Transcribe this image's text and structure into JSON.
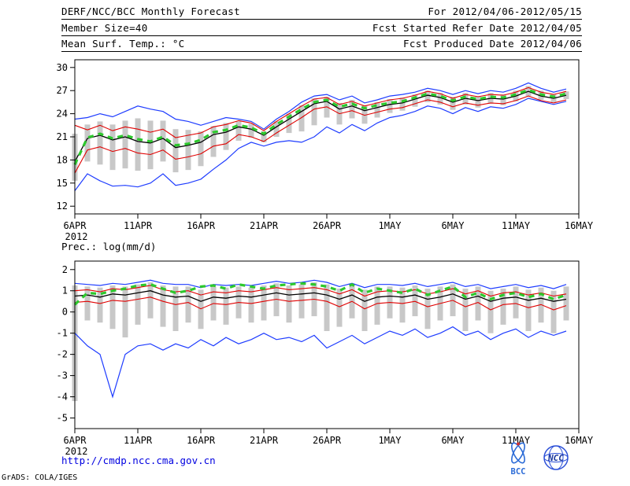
{
  "header": {
    "line1_left": "DERF/NCC/BCC Monthly Forecast",
    "line1_right": "For 2012/04/06-2012/05/15",
    "line2_left": "Member Size=40",
    "line2_right": "Fcst Started Refer Date 2012/04/05",
    "line3_right": "Fcst Produced Date 2012/04/06"
  },
  "footer": {
    "url": "http://cmdp.ncc.cma.gov.cn",
    "credit": "GrADS: COLA/IGES",
    "logo_bcc": "BCC",
    "logo_ncc": "NCC"
  },
  "colors": {
    "max_min_line": "#1e3cff",
    "quartile_line": "#e00000",
    "mean_line": "#000000",
    "analysis_line": "#2dc82d",
    "spread_bar": "#c8c8c8",
    "url_blue": "#0000e0",
    "logo_blue": "#2b6bd7"
  },
  "chart_data": [
    {
      "type": "line",
      "title": "Mean Surf. Temp.: °C",
      "x_year": "2012",
      "x_ticks": [
        "6APR",
        "11APR",
        "16APR",
        "21APR",
        "26APR",
        "1MAY",
        "6MAY",
        "11MAY",
        "16MAY"
      ],
      "x_tick_days": [
        0,
        5,
        10,
        15,
        20,
        25,
        30,
        35,
        40
      ],
      "x_days": 40,
      "ylim": [
        11,
        31
      ],
      "yticks": [
        12,
        15,
        18,
        21,
        24,
        27,
        30
      ],
      "legend_position": "none",
      "grid": false,
      "series": [
        {
          "name": "ensemble-max",
          "color": "#1e3cff",
          "width": 1.2,
          "dash": "",
          "values": [
            23.3,
            23.5,
            24.0,
            23.6,
            24.3,
            25.0,
            24.6,
            24.3,
            23.3,
            23.0,
            22.5,
            23.0,
            23.5,
            23.3,
            23.0,
            22.0,
            23.3,
            24.3,
            25.5,
            26.3,
            26.5,
            25.8,
            26.3,
            25.4,
            25.8,
            26.3,
            26.5,
            26.8,
            27.3,
            27.0,
            26.5,
            27.0,
            26.6,
            27.0,
            26.8,
            27.3,
            28.0,
            27.3,
            26.8,
            27.2
          ]
        },
        {
          "name": "ensemble-min",
          "color": "#1e3cff",
          "width": 1.2,
          "dash": "",
          "values": [
            14.0,
            16.2,
            15.3,
            14.6,
            14.7,
            14.5,
            15.0,
            16.2,
            14.7,
            15.0,
            15.5,
            16.8,
            18.0,
            19.5,
            20.3,
            19.8,
            20.3,
            20.5,
            20.3,
            21.0,
            22.3,
            21.5,
            22.6,
            21.8,
            22.8,
            23.5,
            23.8,
            24.3,
            25.0,
            24.7,
            24.0,
            24.8,
            24.3,
            24.9,
            24.7,
            25.2,
            26.0,
            25.6,
            25.2,
            25.6
          ]
        },
        {
          "name": "upper-quartile",
          "color": "#e00000",
          "width": 1.1,
          "dash": "",
          "values": [
            22.5,
            21.9,
            22.5,
            21.8,
            22.3,
            22.0,
            21.6,
            22.0,
            20.9,
            21.2,
            21.5,
            22.3,
            22.6,
            23.1,
            22.8,
            21.8,
            23.0,
            24.0,
            25.0,
            25.9,
            26.1,
            25.2,
            25.6,
            25.0,
            25.4,
            25.8,
            26.0,
            26.4,
            26.9,
            26.6,
            26.0,
            26.5,
            26.2,
            26.5,
            26.4,
            26.8,
            27.4,
            26.8,
            26.5,
            26.9
          ]
        },
        {
          "name": "lower-quartile",
          "color": "#e00000",
          "width": 1.1,
          "dash": "",
          "values": [
            16.3,
            19.3,
            19.7,
            19.1,
            19.5,
            18.9,
            18.7,
            19.3,
            18.1,
            18.4,
            18.8,
            19.8,
            20.1,
            21.3,
            21.0,
            20.4,
            21.5,
            22.5,
            23.5,
            24.6,
            24.9,
            24.0,
            24.4,
            23.8,
            24.2,
            24.6,
            24.8,
            25.3,
            25.8,
            25.5,
            24.9,
            25.4,
            25.1,
            25.4,
            25.3,
            25.7,
            26.3,
            25.7,
            25.4,
            25.8
          ]
        },
        {
          "name": "ensemble-mean",
          "color": "#000000",
          "width": 1.3,
          "dash": "",
          "values": [
            17.8,
            20.8,
            21.2,
            20.6,
            21.0,
            20.4,
            20.2,
            20.8,
            19.6,
            19.9,
            20.3,
            21.3,
            21.6,
            22.3,
            22.0,
            21.2,
            22.3,
            23.3,
            24.3,
            25.3,
            25.6,
            24.6,
            25.0,
            24.4,
            24.8,
            25.2,
            25.4,
            25.9,
            26.4,
            26.1,
            25.5,
            26.0,
            25.7,
            26.0,
            25.9,
            26.3,
            26.9,
            26.3,
            26.0,
            26.4
          ]
        },
        {
          "name": "analysis",
          "color": "#2dc82d",
          "width": 3.2,
          "dash": "7 6",
          "values": [
            17.4,
            20.9,
            21.4,
            20.8,
            21.2,
            20.7,
            20.4,
            21.0,
            19.9,
            20.1,
            20.6,
            21.6,
            21.9,
            22.5,
            22.2,
            21.4,
            22.6,
            23.6,
            24.6,
            25.5,
            25.8,
            24.9,
            25.3,
            24.7,
            25.1,
            25.4,
            25.6,
            26.1,
            26.6,
            26.3,
            25.7,
            26.2,
            25.9,
            26.2,
            26.1,
            26.5,
            27.1,
            26.5,
            26.2,
            26.6
          ]
        }
      ],
      "bars": {
        "color": "#c8c8c8",
        "low": [
          15.3,
          17.8,
          17.4,
          16.7,
          16.9,
          16.6,
          16.8,
          17.8,
          16.4,
          16.7,
          17.2,
          18.4,
          19.3,
          20.5,
          20.9,
          20.3,
          21.0,
          21.5,
          21.7,
          22.5,
          23.5,
          22.6,
          23.4,
          22.7,
          23.5,
          24.1,
          24.4,
          24.9,
          25.5,
          25.2,
          24.5,
          25.2,
          24.8,
          25.3,
          25.1,
          25.6,
          26.3,
          25.8,
          25.5,
          25.9
        ],
        "high": [
          21.4,
          22.6,
          23.0,
          22.6,
          23.1,
          23.4,
          23.1,
          23.1,
          22.0,
          21.9,
          21.7,
          22.4,
          22.8,
          23.0,
          22.7,
          21.7,
          23.0,
          24.0,
          25.1,
          26.0,
          26.2,
          25.4,
          25.8,
          25.1,
          25.5,
          25.9,
          26.1,
          26.5,
          27.0,
          26.7,
          26.2,
          26.7,
          26.3,
          26.7,
          26.5,
          27.0,
          27.6,
          27.0,
          26.5,
          26.9
        ]
      }
    },
    {
      "type": "line",
      "title": "Prec.: log(mm/d)",
      "x_year": "2012",
      "x_ticks": [
        "6APR",
        "11APR",
        "16APR",
        "21APR",
        "26APR",
        "1MAY",
        "6MAY",
        "11MAY",
        "16MAY"
      ],
      "x_tick_days": [
        0,
        5,
        10,
        15,
        20,
        25,
        30,
        35,
        40
      ],
      "x_days": 40,
      "ylim": [
        -5.5,
        2.4
      ],
      "yticks": [
        -5,
        -4,
        -3,
        -2,
        -1,
        0,
        1,
        2
      ],
      "legend_position": "none",
      "grid": false,
      "series": [
        {
          "name": "ensemble-max",
          "color": "#1e3cff",
          "width": 1.2,
          "dash": "",
          "values": [
            1.35,
            1.3,
            1.25,
            1.35,
            1.3,
            1.4,
            1.5,
            1.35,
            1.3,
            1.3,
            1.15,
            1.3,
            1.25,
            1.3,
            1.25,
            1.35,
            1.45,
            1.35,
            1.4,
            1.5,
            1.4,
            1.2,
            1.35,
            1.15,
            1.3,
            1.3,
            1.25,
            1.35,
            1.2,
            1.3,
            1.4,
            1.2,
            1.3,
            1.1,
            1.2,
            1.3,
            1.15,
            1.25,
            1.1,
            1.3
          ]
        },
        {
          "name": "ensemble-min",
          "color": "#1e3cff",
          "width": 1.2,
          "dash": "",
          "values": [
            -1.0,
            -1.6,
            -2.0,
            -4.0,
            -2.0,
            -1.6,
            -1.5,
            -1.8,
            -1.5,
            -1.7,
            -1.3,
            -1.6,
            -1.2,
            -1.5,
            -1.3,
            -1.0,
            -1.3,
            -1.2,
            -1.4,
            -1.1,
            -1.7,
            -1.4,
            -1.1,
            -1.5,
            -1.2,
            -0.9,
            -1.1,
            -0.8,
            -1.2,
            -1.0,
            -0.7,
            -1.1,
            -0.9,
            -1.3,
            -1.0,
            -0.8,
            -1.2,
            -0.9,
            -1.1,
            -0.9
          ]
        },
        {
          "name": "upper-quartile",
          "color": "#e00000",
          "width": 1.1,
          "dash": "",
          "values": [
            1.0,
            1.05,
            0.95,
            1.1,
            1.05,
            1.15,
            1.25,
            1.05,
            0.95,
            1.0,
            0.8,
            0.95,
            0.9,
            1.0,
            0.95,
            1.05,
            1.15,
            1.05,
            1.1,
            1.15,
            1.05,
            0.85,
            1.05,
            0.75,
            0.95,
            1.0,
            0.95,
            1.05,
            0.85,
            0.95,
            1.1,
            0.85,
            1.0,
            0.75,
            0.9,
            0.95,
            0.8,
            0.9,
            0.75,
            0.85
          ]
        },
        {
          "name": "lower-quartile",
          "color": "#e00000",
          "width": 1.1,
          "dash": "",
          "values": [
            0.45,
            0.5,
            0.4,
            0.55,
            0.5,
            0.6,
            0.7,
            0.5,
            0.35,
            0.45,
            0.15,
            0.4,
            0.35,
            0.45,
            0.4,
            0.5,
            0.6,
            0.5,
            0.55,
            0.6,
            0.5,
            0.25,
            0.5,
            0.15,
            0.4,
            0.45,
            0.4,
            0.5,
            0.25,
            0.4,
            0.55,
            0.25,
            0.45,
            0.1,
            0.35,
            0.4,
            0.2,
            0.35,
            0.1,
            0.3
          ]
        },
        {
          "name": "ensemble-mean",
          "color": "#000000",
          "width": 1.3,
          "dash": "",
          "values": [
            0.75,
            0.8,
            0.7,
            0.85,
            0.8,
            0.9,
            1.0,
            0.8,
            0.7,
            0.75,
            0.5,
            0.7,
            0.65,
            0.75,
            0.7,
            0.8,
            0.9,
            0.8,
            0.85,
            0.9,
            0.8,
            0.6,
            0.8,
            0.5,
            0.7,
            0.75,
            0.7,
            0.8,
            0.6,
            0.7,
            0.85,
            0.6,
            0.75,
            0.5,
            0.65,
            0.7,
            0.55,
            0.65,
            0.5,
            0.6
          ]
        },
        {
          "name": "analysis",
          "color": "#2dc82d",
          "width": 3.2,
          "dash": "7 6",
          "values": [
            0.35,
            0.9,
            0.85,
            1.0,
            1.1,
            1.25,
            1.3,
            1.1,
            0.9,
            1.0,
            1.2,
            1.25,
            1.1,
            1.3,
            1.2,
            1.1,
            1.25,
            1.3,
            1.35,
            1.3,
            1.2,
            1.0,
            1.3,
            0.9,
            1.1,
            1.0,
            0.9,
            1.1,
            0.8,
            1.0,
            1.2,
            0.7,
            0.9,
            0.6,
            0.8,
            0.9,
            0.7,
            0.85,
            0.6,
            0.8
          ]
        }
      ],
      "bars": {
        "color": "#c8c8c8",
        "low": [
          -4.2,
          -0.4,
          -0.5,
          -0.8,
          -1.2,
          -0.6,
          -0.3,
          -0.7,
          -0.9,
          -0.5,
          -0.8,
          -0.4,
          -0.6,
          -0.3,
          -0.5,
          -0.4,
          -0.2,
          -0.5,
          -0.3,
          -0.2,
          -0.9,
          -0.7,
          -0.3,
          -0.9,
          -0.6,
          -0.3,
          -0.5,
          -0.2,
          -0.8,
          -0.4,
          -0.2,
          -0.9,
          -0.4,
          -1.0,
          -0.6,
          -0.3,
          -0.9,
          -0.5,
          -1.0,
          -0.4
        ],
        "high": [
          1.25,
          1.2,
          1.15,
          1.25,
          1.2,
          1.3,
          1.4,
          1.25,
          1.2,
          1.2,
          1.05,
          1.2,
          1.15,
          1.2,
          1.15,
          1.25,
          1.35,
          1.25,
          1.3,
          1.4,
          1.3,
          1.1,
          1.25,
          1.05,
          1.2,
          1.2,
          1.15,
          1.25,
          1.1,
          1.2,
          1.3,
          1.1,
          1.2,
          1.0,
          1.1,
          1.2,
          1.05,
          1.15,
          1.0,
          1.2
        ]
      }
    }
  ]
}
